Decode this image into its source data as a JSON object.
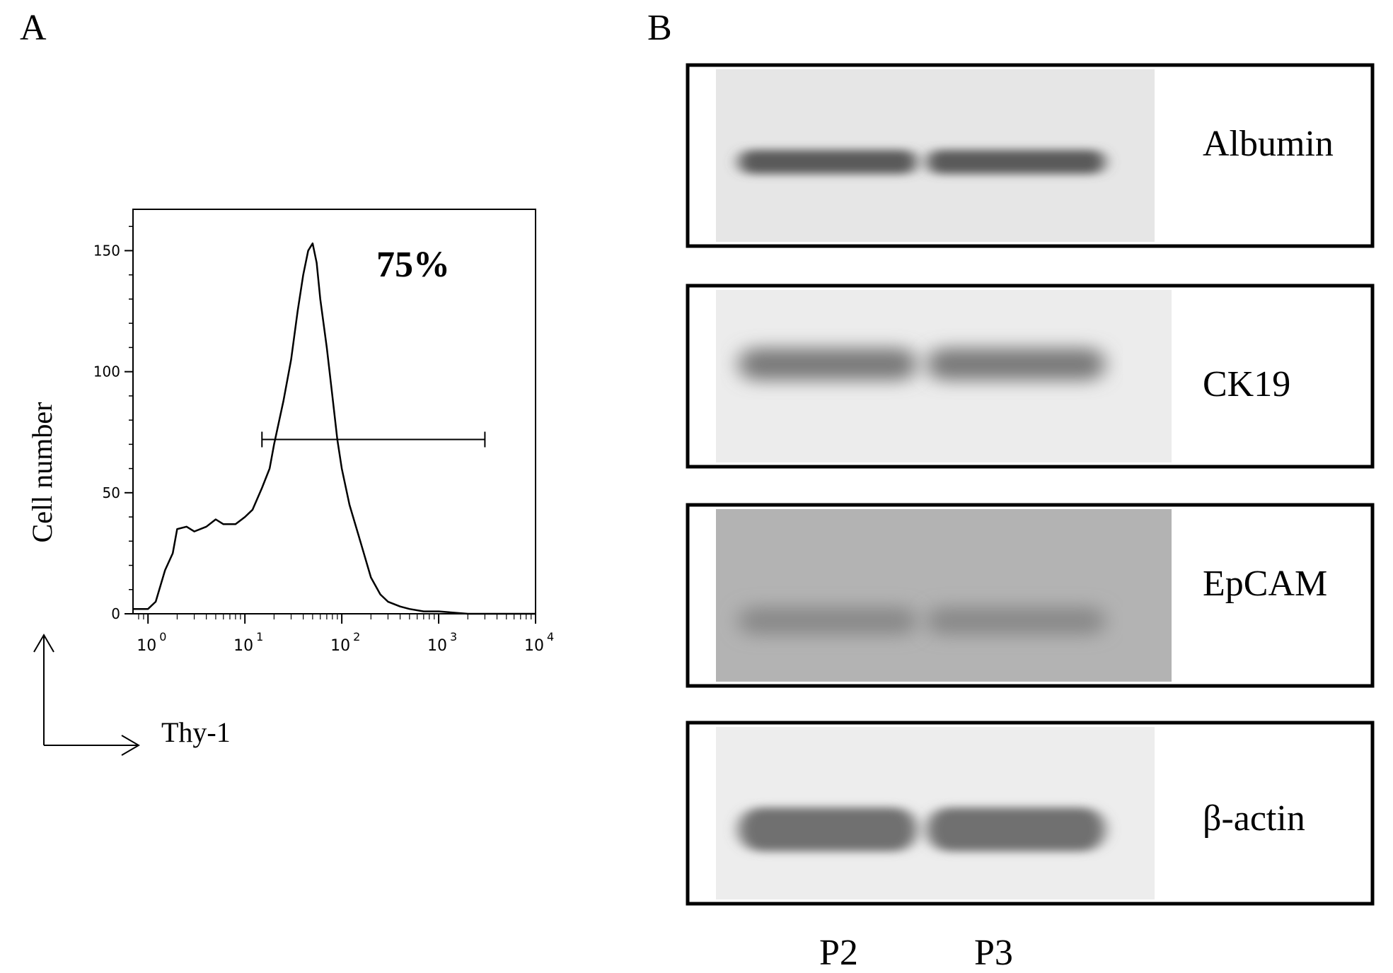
{
  "panels": [
    {
      "letter": "A"
    },
    {
      "letter": "B"
    }
  ],
  "chart_data": [
    {
      "type": "line",
      "subtype": "flow-cytometry-histogram",
      "title": "",
      "xlabel": "Thy-1",
      "ylabel": "Cell number",
      "xscale": "log",
      "xlim": [
        1,
        10000
      ],
      "ylim": [
        0,
        170
      ],
      "x_ticks": [
        {
          "value": 1,
          "base": "10",
          "exp": "0"
        },
        {
          "value": 10,
          "base": "10",
          "exp": "1"
        },
        {
          "value": 100,
          "base": "10",
          "exp": "2"
        },
        {
          "value": 1000,
          "base": "10",
          "exp": "3"
        },
        {
          "value": 10000,
          "base": "10",
          "exp": "4"
        }
      ],
      "y_ticks": [
        "0",
        "50",
        "100",
        "150"
      ],
      "gate": {
        "x_start": 15,
        "x_end": 3000,
        "y": 72,
        "label": "75%"
      },
      "series": [
        {
          "x": [
            0.7,
            1,
            1.2,
            1.5,
            1.8,
            2,
            2.5,
            3,
            4,
            5,
            6,
            8,
            10,
            12,
            15,
            18,
            20,
            25,
            30,
            35,
            40,
            45,
            50,
            55,
            60,
            70,
            80,
            90,
            100,
            120,
            150,
            200,
            250,
            300,
            400,
            500,
            700,
            1000,
            2000,
            5000,
            10000
          ],
          "y": [
            2,
            2,
            5,
            18,
            25,
            35,
            36,
            34,
            36,
            39,
            37,
            37,
            40,
            43,
            52,
            60,
            70,
            88,
            105,
            125,
            140,
            150,
            153,
            145,
            130,
            110,
            90,
            72,
            60,
            45,
            32,
            15,
            8,
            5,
            3,
            2,
            1,
            1,
            0,
            0,
            0
          ]
        }
      ]
    },
    {
      "type": "table",
      "subtype": "western-blot",
      "lanes": [
        "P2",
        "P3"
      ],
      "bands": [
        {
          "label": "Albumin"
        },
        {
          "label": "CK19"
        },
        {
          "label": "EpCAM"
        },
        {
          "label": "β-actin"
        }
      ]
    }
  ]
}
